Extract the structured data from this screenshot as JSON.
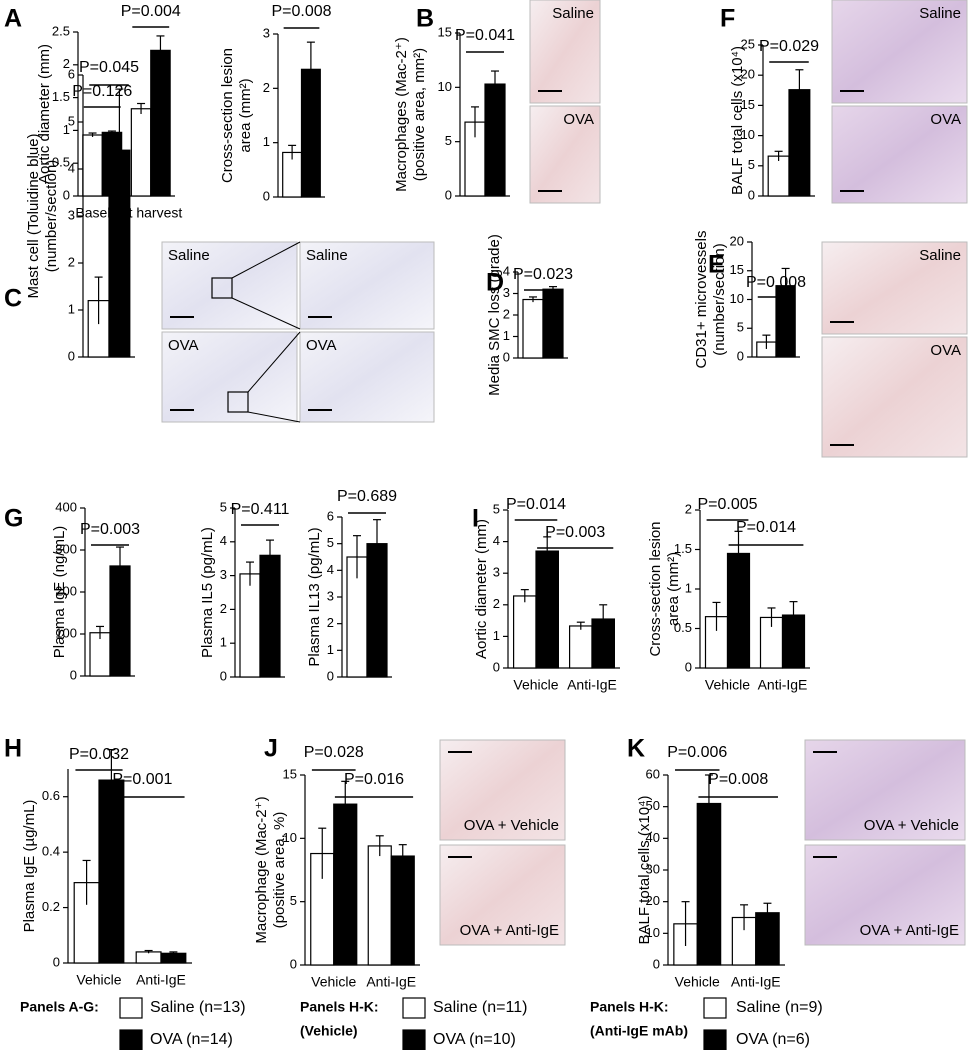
{
  "chart_data": [
    {
      "type": "bar",
      "panel": "A",
      "y_label": [
        "Aortic diameter (mm)"
      ],
      "categories": [
        "Baseline",
        "At harvest"
      ],
      "series": [
        {
          "color": "#ffffff",
          "values": [
            0.93,
            1.33
          ],
          "errors": [
            0.03,
            0.08
          ]
        },
        {
          "color": "#000000",
          "values": [
            0.97,
            2.22
          ],
          "errors": [
            0.02,
            0.22
          ]
        }
      ],
      "ylim": [
        0,
        2.5
      ],
      "yticks": [
        0,
        0.5,
        1,
        1.5,
        2,
        2.5
      ],
      "annotations": [
        "P=0.126",
        "P=0.004"
      ]
    },
    {
      "type": "bar",
      "y_label": [
        "Cross-section lesion",
        "area (mm²)"
      ],
      "categories": [
        null
      ],
      "series": [
        {
          "color": "#ffffff",
          "values": [
            0.82
          ],
          "errors": [
            0.13
          ]
        },
        {
          "color": "#000000",
          "values": [
            2.35
          ],
          "errors": [
            0.5
          ]
        }
      ],
      "ylim": [
        0,
        3
      ],
      "yticks": [
        0,
        1,
        2,
        3
      ],
      "annotations": [
        "P=0.008"
      ]
    },
    {
      "type": "bar",
      "panel": "B",
      "y_label": [
        "Macrophages (Mac-2⁺)",
        "(positive area, mm²)"
      ],
      "categories": [
        null
      ],
      "series": [
        {
          "color": "#ffffff",
          "values": [
            6.8
          ],
          "errors": [
            1.4
          ]
        },
        {
          "color": "#000000",
          "values": [
            10.3
          ],
          "errors": [
            1.2
          ]
        }
      ],
      "ylim": [
        0,
        15
      ],
      "yticks": [
        0,
        5,
        10,
        15
      ],
      "annotations": [
        "P=0.041"
      ],
      "image_labels": [
        "Saline",
        "OVA"
      ]
    },
    {
      "type": "bar",
      "panel": "F",
      "y_label": [
        "BALF total cells (x10⁴)"
      ],
      "categories": [
        null
      ],
      "series": [
        {
          "color": "#ffffff",
          "values": [
            6.6
          ],
          "errors": [
            0.8
          ]
        },
        {
          "color": "#000000",
          "values": [
            17.6
          ],
          "errors": [
            3.3
          ]
        }
      ],
      "ylim": [
        0,
        25
      ],
      "yticks": [
        0,
        5,
        10,
        15,
        20,
        25
      ],
      "annotations": [
        "P=0.029"
      ],
      "image_labels": [
        "Saline",
        "OVA"
      ]
    },
    {
      "type": "bar",
      "panel": "C",
      "y_label": [
        "Mast cell (Toluidine blue)",
        "(number/section)"
      ],
      "categories": [
        null
      ],
      "series": [
        {
          "color": "#ffffff",
          "values": [
            1.2
          ],
          "errors": [
            0.5
          ]
        },
        {
          "color": "#000000",
          "values": [
            4.4
          ],
          "errors": [
            1.3
          ]
        }
      ],
      "ylim": [
        0,
        6
      ],
      "yticks": [
        0,
        1,
        2,
        3,
        4,
        5,
        6
      ],
      "annotations": [
        "P=0.045"
      ],
      "image_labels": [
        "Saline",
        "Saline",
        "OVA",
        "OVA"
      ]
    },
    {
      "type": "bar",
      "panel": "D",
      "y_label": [
        "Media SMC loss (grade)"
      ],
      "categories": [
        null
      ],
      "series": [
        {
          "color": "#ffffff",
          "values": [
            2.72
          ],
          "errors": [
            0.12
          ]
        },
        {
          "color": "#000000",
          "values": [
            3.2
          ],
          "errors": [
            0.12
          ]
        }
      ],
      "ylim": [
        0,
        4
      ],
      "yticks": [
        0,
        1,
        2,
        3,
        4
      ],
      "annotations": [
        "P=0.023"
      ]
    },
    {
      "type": "bar",
      "panel": "E",
      "y_label": [
        "CD31+ microvessels",
        "(number/section)"
      ],
      "categories": [
        null
      ],
      "series": [
        {
          "color": "#ffffff",
          "values": [
            2.6
          ],
          "errors": [
            1.2
          ]
        },
        {
          "color": "#000000",
          "values": [
            12.4
          ],
          "errors": [
            3.0
          ]
        }
      ],
      "ylim": [
        0,
        20
      ],
      "yticks": [
        0,
        5,
        10,
        15,
        20
      ],
      "annotations": [
        "P=0.008"
      ],
      "image_labels": [
        "Saline",
        "OVA"
      ]
    },
    {
      "type": "bar",
      "panel": "G",
      "y_label": [
        "Plasma IgE (ng/mL)"
      ],
      "categories": [
        null
      ],
      "series": [
        {
          "color": "#ffffff",
          "values": [
            103
          ],
          "errors": [
            15
          ]
        },
        {
          "color": "#000000",
          "values": [
            262
          ],
          "errors": [
            45
          ]
        }
      ],
      "ylim": [
        0,
        400
      ],
      "yticks": [
        0,
        100,
        200,
        300,
        400
      ],
      "annotations": [
        "P=0.003"
      ]
    },
    {
      "type": "bar",
      "y_label": [
        "Plasma IL5 (pg/mL)"
      ],
      "categories": [
        null
      ],
      "series": [
        {
          "color": "#ffffff",
          "values": [
            3.05
          ],
          "errors": [
            0.35
          ]
        },
        {
          "color": "#000000",
          "values": [
            3.6
          ],
          "errors": [
            0.45
          ]
        }
      ],
      "ylim": [
        0,
        5
      ],
      "yticks": [
        0,
        1,
        2,
        3,
        4,
        5
      ],
      "annotations": [
        "P=0.411"
      ]
    },
    {
      "type": "bar",
      "y_label": [
        "Plasma IL13 (pg/mL)"
      ],
      "categories": [
        null
      ],
      "series": [
        {
          "color": "#ffffff",
          "values": [
            4.5
          ],
          "errors": [
            0.8
          ]
        },
        {
          "color": "#000000",
          "values": [
            5.0
          ],
          "errors": [
            0.9
          ]
        }
      ],
      "ylim": [
        0,
        6
      ],
      "yticks": [
        0,
        1,
        2,
        3,
        4,
        5,
        6
      ],
      "annotations": [
        "P=0.689"
      ]
    },
    {
      "type": "bar",
      "panel": "I",
      "y_label": [
        "Aortic diameter (mm)"
      ],
      "categories": [
        "Vehicle",
        "Anti-IgE"
      ],
      "series": [
        {
          "color": "#ffffff",
          "values": [
            2.28,
            1.33
          ],
          "errors": [
            0.2,
            0.12
          ]
        },
        {
          "color": "#000000",
          "values": [
            3.7,
            1.55
          ],
          "errors": [
            0.45,
            0.45
          ]
        }
      ],
      "ylim": [
        0,
        5
      ],
      "yticks": [
        0,
        1,
        2,
        3,
        4,
        5
      ],
      "annotations": [
        "P=0.014",
        "P=0.003"
      ]
    },
    {
      "type": "bar",
      "y_label": [
        "Cross-section lesion",
        "area (mm²)"
      ],
      "categories": [
        "Vehicle",
        "Anti-IgE"
      ],
      "series": [
        {
          "color": "#ffffff",
          "values": [
            0.65,
            0.64
          ],
          "errors": [
            0.18,
            0.12
          ]
        },
        {
          "color": "#000000",
          "values": [
            1.45,
            0.67
          ],
          "errors": [
            0.28,
            0.17
          ]
        }
      ],
      "ylim": [
        0,
        2
      ],
      "yticks": [
        0,
        0.5,
        1,
        1.5,
        2
      ],
      "annotations": [
        "P=0.005",
        "P=0.014"
      ]
    },
    {
      "type": "bar",
      "panel": "H",
      "y_label": [
        "Plasma IgE (µg/mL)"
      ],
      "categories": [
        "Vehicle",
        "Anti-IgE"
      ],
      "series": [
        {
          "color": "#ffffff",
          "values": [
            0.29,
            0.04
          ],
          "errors": [
            0.08,
            0.005
          ]
        },
        {
          "color": "#000000",
          "values": [
            0.66,
            0.035
          ],
          "errors": [
            0.11,
            0.005
          ]
        }
      ],
      "ylim": [
        0,
        0.7
      ],
      "yticks": [
        0,
        0.2,
        0.4,
        0.6
      ],
      "annotations": [
        "P=0.032",
        "P=0.001"
      ]
    },
    {
      "type": "bar",
      "panel": "J",
      "y_label": [
        "Macrophage (Mac-2⁺)",
        "(positive area, %)"
      ],
      "categories": [
        "Vehicle",
        "Anti-IgE"
      ],
      "series": [
        {
          "color": "#ffffff",
          "values": [
            8.8,
            9.4
          ],
          "errors": [
            2.0,
            0.8
          ]
        },
        {
          "color": "#000000",
          "values": [
            12.7,
            8.6
          ],
          "errors": [
            1.8,
            0.9
          ]
        }
      ],
      "ylim": [
        0,
        15
      ],
      "yticks": [
        0,
        5,
        10,
        15
      ],
      "annotations": [
        "P=0.028",
        "P=0.016"
      ],
      "image_labels": [
        "OVA + Vehicle",
        "OVA + Anti-IgE"
      ]
    },
    {
      "type": "bar",
      "panel": "K",
      "y_label": [
        "BALF total cells (x10⁴)"
      ],
      "categories": [
        "Vehicle",
        "Anti-IgE"
      ],
      "series": [
        {
          "color": "#ffffff",
          "values": [
            13,
            15
          ],
          "errors": [
            7,
            4
          ]
        },
        {
          "color": "#000000",
          "values": [
            51,
            16.5
          ],
          "errors": [
            9,
            3
          ]
        }
      ],
      "ylim": [
        0,
        60
      ],
      "yticks": [
        0,
        10,
        20,
        30,
        40,
        50,
        60
      ],
      "annotations": [
        "P=0.006",
        "P=0.008"
      ],
      "image_labels": [
        "OVA + Vehicle",
        "OVA + Anti-IgE"
      ]
    }
  ],
  "legend": [
    {
      "title": [
        "Panels A-G:"
      ],
      "entries": [
        {
          "label": "Saline (n=13)",
          "color": "#ffffff"
        },
        {
          "label": "OVA (n=14)",
          "color": "#000000"
        }
      ]
    },
    {
      "title": [
        "Panels H-K:",
        "(Vehicle)"
      ],
      "entries": [
        {
          "label": "Saline (n=11)",
          "color": "#ffffff"
        },
        {
          "label": "OVA (n=10)",
          "color": "#000000"
        }
      ]
    },
    {
      "title": [
        "Panels H-K:",
        "(Anti-IgE mAb)"
      ],
      "entries": [
        {
          "label": "Saline (n=9)",
          "color": "#ffffff"
        },
        {
          "label": "OVA (n=6)",
          "color": "#000000"
        }
      ]
    }
  ]
}
